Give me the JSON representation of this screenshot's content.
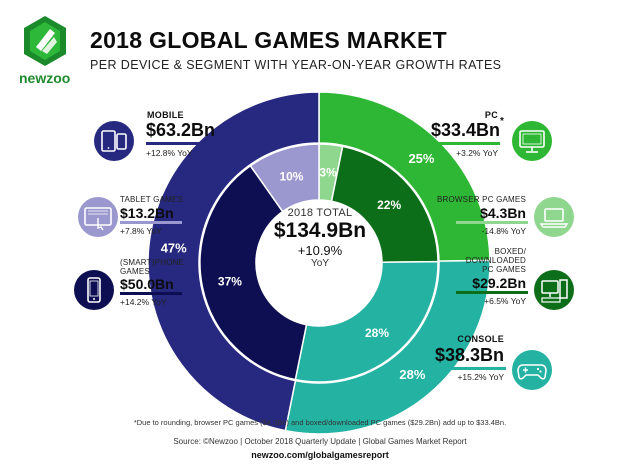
{
  "header": {
    "title": "2018 GLOBAL GAMES MARKET",
    "subtitle": "PER DEVICE & SEGMENT WITH YEAR-ON-YEAR GROWTH RATES",
    "brand": "newzoo"
  },
  "labels": {
    "mobile": {
      "category": "MOBILE",
      "value": "$63.2Bn",
      "yoy": "+12.8% YoY",
      "color": "#27287f"
    },
    "tablet": {
      "category": "TABLET GAMES",
      "value": "$13.2Bn",
      "yoy": "+7.8% YoY",
      "color": "#9b98cf"
    },
    "smartphone": {
      "category_line1": "(SMART)PHONE",
      "category_line2": "GAMES",
      "value": "$50.0Bn",
      "yoy": "+14.2% YoY",
      "color": "#0e0f52"
    },
    "pc": {
      "category": "PC",
      "value": "$33.4Bn",
      "asterisk": "*",
      "yoy": "+3.2% YoY",
      "color": "#2db734"
    },
    "browser": {
      "category": "BROWSER PC GAMES",
      "value": "$4.3Bn",
      "yoy": "-14.8% YoY",
      "color": "#8fd68e"
    },
    "boxed": {
      "category_line1": "BOXED/",
      "category_line2": "DOWNLOADED",
      "category_line3": "PC GAMES",
      "value": "$29.2Bn",
      "yoy": "+6.5% YoY",
      "color": "#0d6e1a"
    },
    "console": {
      "category": "CONSOLE",
      "value": "$38.3Bn",
      "yoy": "+15.2% YoY",
      "color": "#24b3a3"
    }
  },
  "center": {
    "total_label": "2018 TOTAL",
    "total_value": "$134.9Bn",
    "growth": "+10.9%",
    "yoy": "YoY"
  },
  "footer": {
    "footnote": "*Due to rounding, browser PC games ($4.3Bn) and boxed/downloaded PC games ($29.2Bn) add up to $33.4Bn.",
    "source": "Source: ©Newzoo | October 2018 Quarterly Update | Global Games Market Report",
    "url": "newzoo.com/globalgamesreport"
  },
  "chart_data": {
    "type": "pie",
    "title": "2018 GLOBAL GAMES MARKET",
    "outer_ring": {
      "categories": [
        "PC",
        "Console",
        "Mobile"
      ],
      "percent_labels": [
        "25%",
        "28%",
        "47%"
      ],
      "values": [
        33.4,
        38.3,
        63.2
      ],
      "unit": "$Bn",
      "colors": [
        "#2db734",
        "#24b3a3",
        "#27287f"
      ]
    },
    "inner_ring": {
      "categories": [
        "Browser PC Games",
        "Boxed/Downloaded PC Games",
        "Console",
        "(Smart)phone Games",
        "Tablet Games"
      ],
      "percent_labels": [
        "3%",
        "22%",
        "28%",
        "37%",
        "10%"
      ],
      "values": [
        4.3,
        29.2,
        38.3,
        50.0,
        13.2
      ],
      "unit": "$Bn",
      "colors": [
        "#8fd68e",
        "#0d6e1a",
        "#24b3a3",
        "#0e0f52",
        "#9b98cf"
      ]
    },
    "total": 134.9
  }
}
